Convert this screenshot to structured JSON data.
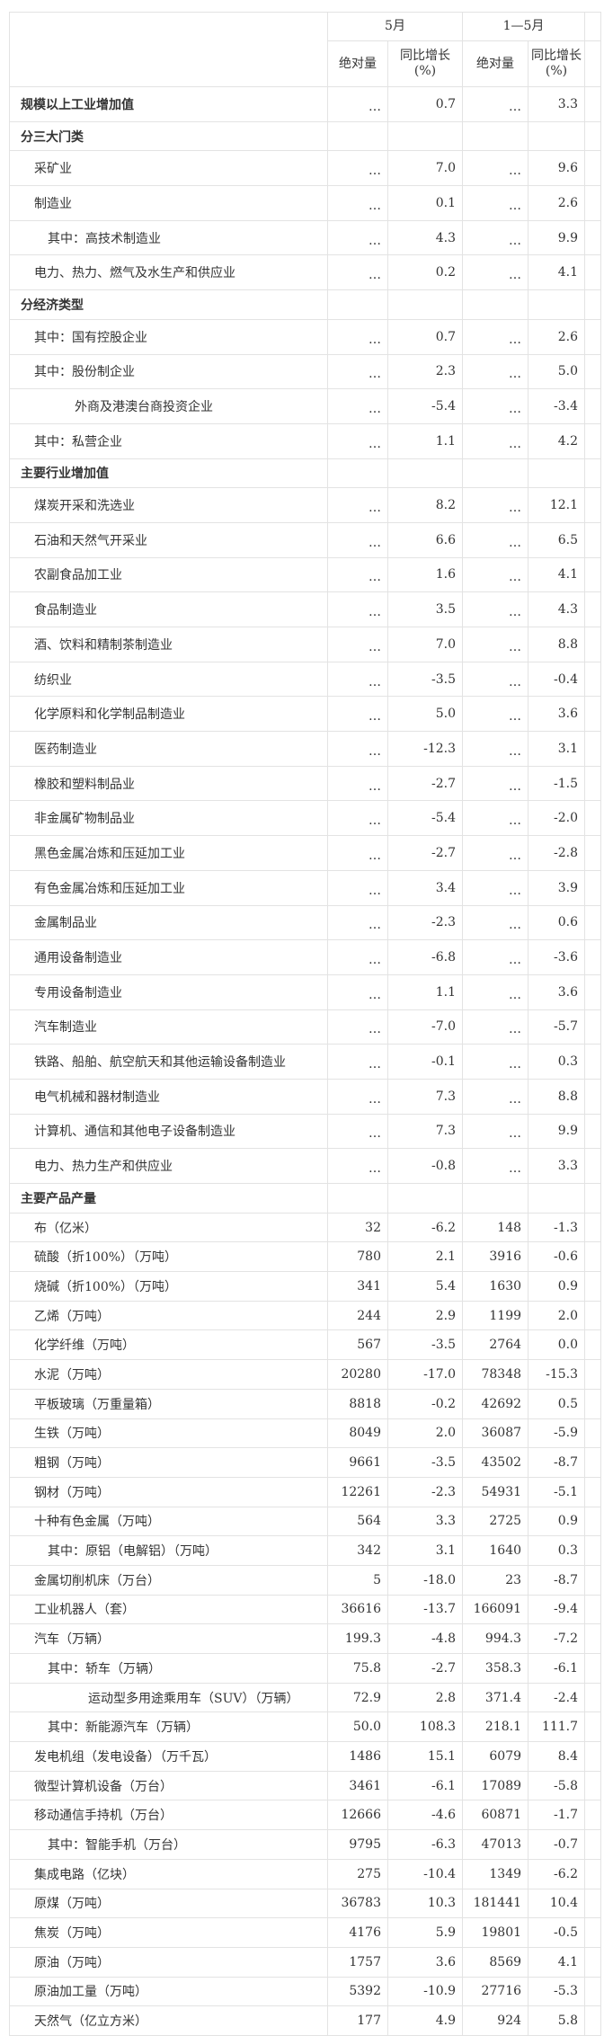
{
  "header": {
    "group1": "5月",
    "group2": "1—5月",
    "col_abs": "绝对量",
    "col_yoy_line1": "同比增长",
    "col_yoy_line2": "(%)"
  },
  "rows": [
    {
      "label": "规模以上工业增加值",
      "level": 0,
      "bold": true,
      "v": [
        "…",
        "0.7",
        "…",
        "3.3"
      ]
    },
    {
      "label": "分三大门类",
      "level": 0,
      "bold": true,
      "v": [
        "",
        "",
        "",
        ""
      ]
    },
    {
      "label": "采矿业",
      "level": 1,
      "v": [
        "…",
        "7.0",
        "…",
        "9.6"
      ]
    },
    {
      "label": "制造业",
      "level": 1,
      "v": [
        "…",
        "0.1",
        "…",
        "2.6"
      ]
    },
    {
      "label": "其中：高技术制造业",
      "level": 2,
      "v": [
        "…",
        "4.3",
        "…",
        "9.9"
      ]
    },
    {
      "label": "电力、热力、燃气及水生产和供应业",
      "level": 1,
      "v": [
        "…",
        "0.2",
        "…",
        "4.1"
      ]
    },
    {
      "label": "分经济类型",
      "level": 0,
      "bold": true,
      "v": [
        "",
        "",
        "",
        ""
      ]
    },
    {
      "label": "其中：国有控股企业",
      "level": 1,
      "v": [
        "…",
        "0.7",
        "…",
        "2.6"
      ]
    },
    {
      "label": "其中：股份制企业",
      "level": 1,
      "v": [
        "…",
        "2.3",
        "…",
        "5.0"
      ]
    },
    {
      "label": "外商及港澳台商投资企业",
      "level": 3,
      "v": [
        "…",
        "-5.4",
        "…",
        "-3.4"
      ]
    },
    {
      "label": "其中：私营企业",
      "level": 1,
      "v": [
        "…",
        "1.1",
        "…",
        "4.2"
      ]
    },
    {
      "label": "主要行业增加值",
      "level": 0,
      "bold": true,
      "v": [
        "",
        "",
        "",
        ""
      ]
    },
    {
      "label": "煤炭开采和洗选业",
      "level": 1,
      "v": [
        "…",
        "8.2",
        "…",
        "12.1"
      ]
    },
    {
      "label": "石油和天然气开采业",
      "level": 1,
      "v": [
        "…",
        "6.6",
        "…",
        "6.5"
      ]
    },
    {
      "label": "农副食品加工业",
      "level": 1,
      "v": [
        "…",
        "1.6",
        "…",
        "4.1"
      ]
    },
    {
      "label": "食品制造业",
      "level": 1,
      "v": [
        "…",
        "3.5",
        "…",
        "4.3"
      ]
    },
    {
      "label": "酒、饮料和精制茶制造业",
      "level": 1,
      "v": [
        "…",
        "7.0",
        "…",
        "8.8"
      ]
    },
    {
      "label": "纺织业",
      "level": 1,
      "v": [
        "…",
        "-3.5",
        "…",
        "-0.4"
      ]
    },
    {
      "label": "化学原料和化学制品制造业",
      "level": 1,
      "v": [
        "…",
        "5.0",
        "…",
        "3.6"
      ]
    },
    {
      "label": "医药制造业",
      "level": 1,
      "v": [
        "…",
        "-12.3",
        "…",
        "3.1"
      ]
    },
    {
      "label": "橡胶和塑料制品业",
      "level": 1,
      "v": [
        "…",
        "-2.7",
        "…",
        "-1.5"
      ]
    },
    {
      "label": "非金属矿物制品业",
      "level": 1,
      "v": [
        "…",
        "-5.4",
        "…",
        "-2.0"
      ]
    },
    {
      "label": "黑色金属冶炼和压延加工业",
      "level": 1,
      "v": [
        "…",
        "-2.7",
        "…",
        "-2.8"
      ]
    },
    {
      "label": "有色金属冶炼和压延加工业",
      "level": 1,
      "v": [
        "…",
        "3.4",
        "…",
        "3.9"
      ]
    },
    {
      "label": "金属制品业",
      "level": 1,
      "v": [
        "…",
        "-2.3",
        "…",
        "0.6"
      ]
    },
    {
      "label": "通用设备制造业",
      "level": 1,
      "v": [
        "…",
        "-6.8",
        "…",
        "-3.6"
      ]
    },
    {
      "label": "专用设备制造业",
      "level": 1,
      "v": [
        "…",
        "1.1",
        "…",
        "3.6"
      ]
    },
    {
      "label": "汽车制造业",
      "level": 1,
      "v": [
        "…",
        "-7.0",
        "…",
        "-5.7"
      ]
    },
    {
      "label": "铁路、船舶、航空航天和其他运输设备制造业",
      "level": 1,
      "v": [
        "…",
        "-0.1",
        "…",
        "0.3"
      ]
    },
    {
      "label": "电气机械和器材制造业",
      "level": 1,
      "v": [
        "…",
        "7.3",
        "…",
        "8.8"
      ]
    },
    {
      "label": "计算机、通信和其他电子设备制造业",
      "level": 1,
      "v": [
        "…",
        "7.3",
        "…",
        "9.9"
      ]
    },
    {
      "label": "电力、热力生产和供应业",
      "level": 1,
      "v": [
        "…",
        "-0.8",
        "…",
        "3.3"
      ]
    },
    {
      "label": "主要产品产量",
      "level": 0,
      "bold": true,
      "v": [
        "",
        "",
        "",
        ""
      ]
    },
    {
      "label": "布（亿米）",
      "level": 1,
      "v": [
        "32",
        "-6.2",
        "148",
        "-1.3"
      ]
    },
    {
      "label": "硫酸（折100%）（万吨）",
      "level": 1,
      "v": [
        "780",
        "2.1",
        "3916",
        "-0.6"
      ]
    },
    {
      "label": "烧碱（折100%）（万吨）",
      "level": 1,
      "v": [
        "341",
        "5.4",
        "1630",
        "0.9"
      ]
    },
    {
      "label": "乙烯（万吨）",
      "level": 1,
      "v": [
        "244",
        "2.9",
        "1199",
        "2.0"
      ]
    },
    {
      "label": "化学纤维（万吨）",
      "level": 1,
      "v": [
        "567",
        "-3.5",
        "2764",
        "0.0"
      ]
    },
    {
      "label": "水泥（万吨）",
      "level": 1,
      "v": [
        "20280",
        "-17.0",
        "78348",
        "-15.3"
      ]
    },
    {
      "label": "平板玻璃（万重量箱）",
      "level": 1,
      "v": [
        "8818",
        "-0.2",
        "42692",
        "0.5"
      ]
    },
    {
      "label": "生铁（万吨）",
      "level": 1,
      "v": [
        "8049",
        "2.0",
        "36087",
        "-5.9"
      ]
    },
    {
      "label": "粗钢（万吨）",
      "level": 1,
      "v": [
        "9661",
        "-3.5",
        "43502",
        "-8.7"
      ]
    },
    {
      "label": "钢材（万吨）",
      "level": 1,
      "v": [
        "12261",
        "-2.3",
        "54931",
        "-5.1"
      ]
    },
    {
      "label": "十种有色金属（万吨）",
      "level": 1,
      "v": [
        "564",
        "3.3",
        "2725",
        "0.9"
      ]
    },
    {
      "label": "其中：原铝（电解铝）（万吨）",
      "level": 2,
      "v": [
        "342",
        "3.1",
        "1640",
        "0.3"
      ]
    },
    {
      "label": "金属切削机床（万台）",
      "level": 1,
      "v": [
        "5",
        "-18.0",
        "23",
        "-8.7"
      ]
    },
    {
      "label": "工业机器人（套）",
      "level": 1,
      "v": [
        "36616",
        "-13.7",
        "166091",
        "-9.4"
      ]
    },
    {
      "label": "汽车（万辆）",
      "level": 1,
      "v": [
        "199.3",
        "-4.8",
        "994.3",
        "-7.2"
      ]
    },
    {
      "label": "其中：轿车（万辆）",
      "level": 2,
      "v": [
        "75.8",
        "-2.7",
        "358.3",
        "-6.1"
      ]
    },
    {
      "label": "运动型多用途乘用车（SUV）（万辆）",
      "level": 4,
      "v": [
        "72.9",
        "2.8",
        "371.4",
        "-2.4"
      ]
    },
    {
      "label": "其中：新能源汽车（万辆）",
      "level": 2,
      "v": [
        "50.0",
        "108.3",
        "218.1",
        "111.7"
      ]
    },
    {
      "label": "发电机组（发电设备）（万千瓦）",
      "level": 1,
      "v": [
        "1486",
        "15.1",
        "6079",
        "8.4"
      ]
    },
    {
      "label": "微型计算机设备（万台）",
      "level": 1,
      "v": [
        "3461",
        "-6.1",
        "17089",
        "-5.8"
      ]
    },
    {
      "label": "移动通信手持机（万台）",
      "level": 1,
      "v": [
        "12666",
        "-4.6",
        "60871",
        "-1.7"
      ]
    },
    {
      "label": "其中：智能手机（万台）",
      "level": 2,
      "v": [
        "9795",
        "-6.3",
        "47013",
        "-0.7"
      ]
    },
    {
      "label": "集成电路（亿块）",
      "level": 1,
      "v": [
        "275",
        "-10.4",
        "1349",
        "-6.2"
      ]
    },
    {
      "label": "原煤（万吨）",
      "level": 1,
      "v": [
        "36783",
        "10.3",
        "181441",
        "10.4"
      ]
    },
    {
      "label": "焦炭（万吨）",
      "level": 1,
      "v": [
        "4176",
        "5.9",
        "19801",
        "-0.5"
      ]
    },
    {
      "label": "原油（万吨）",
      "level": 1,
      "v": [
        "1757",
        "3.6",
        "8569",
        "4.1"
      ]
    },
    {
      "label": "原油加工量（万吨）",
      "level": 1,
      "v": [
        "5392",
        "-10.9",
        "27716",
        "-5.3"
      ]
    },
    {
      "label": "天然气（亿立方米）",
      "level": 1,
      "v": [
        "177",
        "4.9",
        "924",
        "5.8"
      ]
    }
  ]
}
